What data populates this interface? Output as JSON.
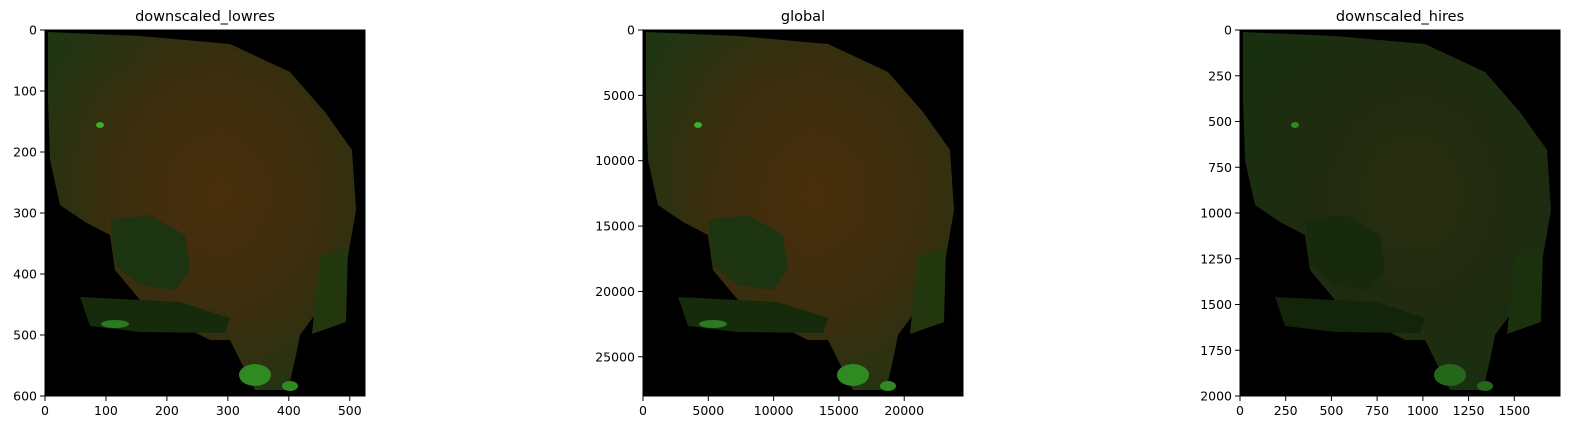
{
  "chart_data": [
    {
      "type": "image",
      "title": "downscaled_lowres",
      "xlim": [
        0,
        525
      ],
      "ylim": [
        600,
        0
      ],
      "xticks": [
        0,
        100,
        200,
        300,
        400,
        500
      ],
      "yticks": [
        0,
        100,
        200,
        300,
        400,
        500,
        600
      ],
      "xtick_labels": [
        "0",
        "100",
        "200",
        "300",
        "400",
        "500"
      ],
      "ytick_labels": [
        "0",
        "100",
        "200",
        "300",
        "400",
        "500",
        "600"
      ],
      "image_colors": {
        "background": "#000000",
        "tissue": "#3b2d0d",
        "tissue_green": "#1f3512",
        "bright_green": "#3fae2a"
      }
    },
    {
      "type": "image",
      "title": "global",
      "xlim": [
        0,
        24500
      ],
      "ylim": [
        28000,
        0
      ],
      "xticks": [
        0,
        5000,
        10000,
        15000,
        20000
      ],
      "yticks": [
        0,
        5000,
        10000,
        15000,
        20000,
        25000
      ],
      "xtick_labels": [
        "0",
        "5000",
        "10000",
        "15000",
        "20000"
      ],
      "ytick_labels": [
        "0",
        "5000",
        "10000",
        "15000",
        "20000",
        "25000"
      ],
      "image_colors": {
        "background": "#000000",
        "tissue": "#3b2d0d",
        "tissue_green": "#1f3512",
        "bright_green": "#3fae2a"
      }
    },
    {
      "type": "image",
      "title": "downscaled_hires",
      "xlim": [
        0,
        1750
      ],
      "ylim": [
        2000,
        0
      ],
      "xticks": [
        0,
        250,
        500,
        750,
        1000,
        1250,
        1500
      ],
      "yticks": [
        0,
        250,
        500,
        750,
        1000,
        1250,
        1500,
        1750,
        2000
      ],
      "xtick_labels": [
        "0",
        "250",
        "500",
        "750",
        "1000",
        "1250",
        "1500"
      ],
      "ytick_labels": [
        "0",
        "250",
        "500",
        "750",
        "1000",
        "1250",
        "1500",
        "1750",
        "2000"
      ],
      "image_colors": {
        "background": "#000000",
        "tissue": "#1e2a10",
        "tissue_green": "#1a3210",
        "bright_green": "#2f8a22"
      }
    }
  ]
}
